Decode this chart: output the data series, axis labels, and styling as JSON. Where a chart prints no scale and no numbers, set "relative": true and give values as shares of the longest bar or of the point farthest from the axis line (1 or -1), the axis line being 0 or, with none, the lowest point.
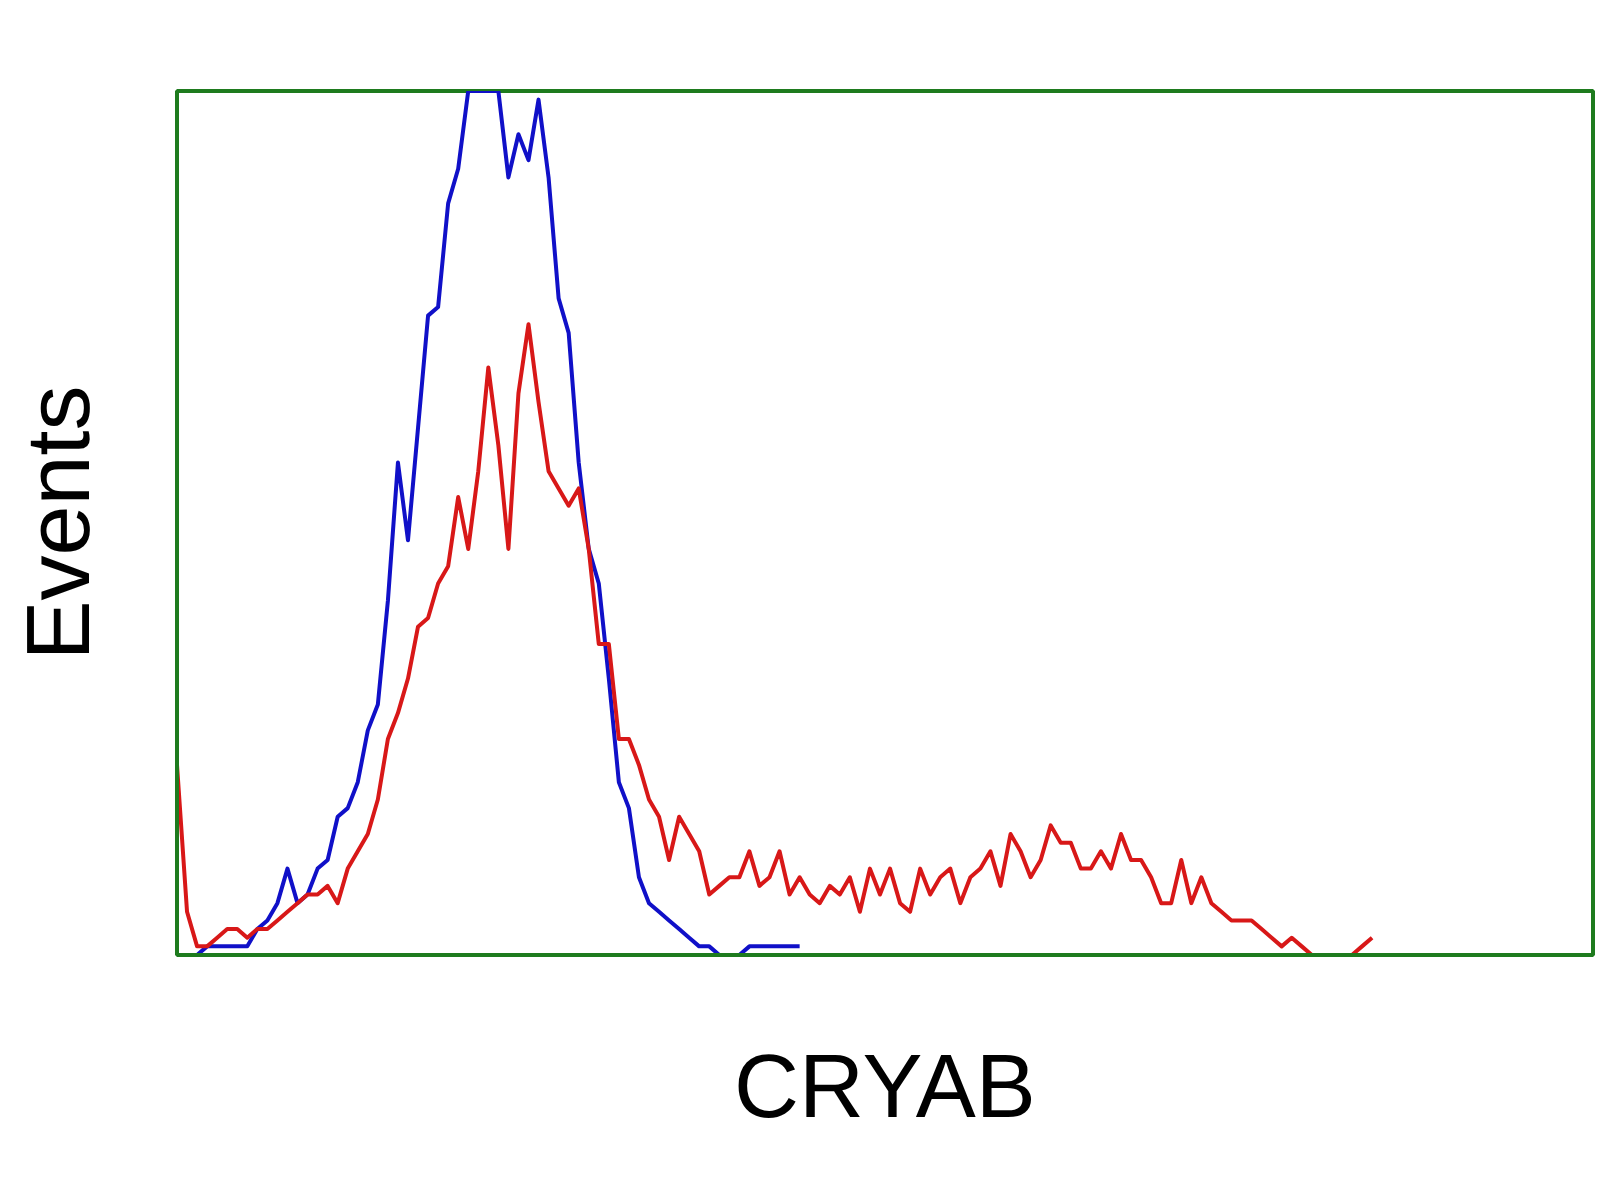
{
  "chart_data": {
    "type": "line",
    "relative": true,
    "xlabel": "CRYAB",
    "ylabel": "Events",
    "categories": [
      null,
      null,
      null,
      null,
      null,
      null,
      null,
      null,
      null,
      null,
      null,
      null,
      null,
      null,
      null,
      null,
      null,
      null,
      null,
      null,
      null,
      null,
      null,
      null,
      null,
      null,
      null,
      null,
      null,
      null,
      null,
      null,
      null,
      null,
      null,
      null,
      null,
      null,
      null,
      null,
      null,
      null,
      null,
      null,
      null,
      null,
      null,
      null,
      null,
      null,
      null,
      null,
      null,
      null,
      null,
      null,
      null,
      null,
      null,
      null,
      null,
      null,
      null,
      null,
      null,
      null,
      null,
      null,
      null,
      null,
      null,
      null,
      null,
      null,
      null,
      null,
      null,
      null,
      null,
      null,
      null,
      null,
      null,
      null,
      null,
      null,
      null,
      null,
      null,
      null,
      null,
      null,
      null,
      null,
      null,
      null,
      null,
      null,
      null,
      null,
      null,
      null,
      null,
      null,
      null,
      null,
      null,
      null,
      null,
      null,
      null,
      null,
      null,
      null,
      null,
      null,
      null,
      null,
      null,
      null,
      null,
      null,
      null,
      null,
      null,
      null,
      null,
      null,
      null,
      null,
      null,
      null,
      null,
      null,
      null,
      null,
      null,
      null,
      null,
      null,
      null,
      null
    ],
    "series": [
      {
        "color": "#1010c8",
        "values": [
          null,
          null,
          0,
          0.01,
          0.01,
          0.01,
          0.01,
          0.01,
          0.03,
          0.04,
          0.06,
          0.1,
          0.06,
          0.07,
          0.1,
          0.11,
          0.16,
          0.17,
          0.2,
          0.26,
          0.29,
          0.41,
          0.57,
          0.48,
          0.61,
          0.74,
          0.75,
          0.87,
          0.91,
          1,
          1,
          1,
          1,
          0.9,
          0.95,
          0.92,
          0.99,
          0.9,
          0.76,
          0.72,
          0.57,
          0.47,
          0.43,
          0.32,
          0.2,
          0.17,
          0.09,
          0.06,
          0.05,
          0.04,
          0.03,
          0.02,
          0.01,
          0.01,
          0,
          0,
          0,
          0.01,
          0.01,
          0.01,
          0.01,
          0.01,
          0.01,
          null,
          null,
          null,
          null,
          null,
          null,
          null,
          null,
          null,
          null,
          null,
          null,
          null,
          null,
          null,
          null,
          null,
          null,
          null,
          null,
          null,
          null,
          null,
          null,
          null,
          null,
          null,
          null,
          null,
          null,
          null,
          null,
          null,
          null,
          null,
          null,
          null,
          null,
          null,
          null,
          null,
          null,
          null,
          null,
          null,
          null,
          null,
          null,
          null,
          null,
          null,
          null,
          null,
          null,
          null,
          null,
          null,
          null,
          null,
          null,
          null,
          null,
          null,
          null,
          null,
          null,
          null,
          null,
          null,
          null,
          null,
          null,
          null,
          null,
          null,
          null,
          null,
          null,
          null
        ]
      },
      {
        "color": "#d81818",
        "values": [
          0.22,
          0.05,
          0.01,
          0.01,
          0.02,
          0.03,
          0.03,
          0.02,
          0.03,
          0.03,
          0.04,
          0.05,
          0.06,
          0.07,
          0.07,
          0.08,
          0.06,
          0.1,
          0.12,
          0.14,
          0.18,
          0.25,
          0.28,
          0.32,
          0.38,
          0.39,
          0.43,
          0.45,
          0.53,
          0.47,
          0.56,
          0.68,
          0.59,
          0.47,
          0.65,
          0.73,
          0.64,
          0.56,
          0.54,
          0.52,
          0.54,
          0.47,
          0.36,
          0.36,
          0.25,
          0.25,
          0.22,
          0.18,
          0.16,
          0.11,
          0.16,
          0.14,
          0.12,
          0.07,
          0.08,
          0.09,
          0.09,
          0.12,
          0.08,
          0.09,
          0.12,
          0.07,
          0.09,
          0.07,
          0.06,
          0.08,
          0.07,
          0.09,
          0.05,
          0.1,
          0.07,
          0.1,
          0.06,
          0.05,
          0.1,
          0.07,
          0.09,
          0.1,
          0.06,
          0.09,
          0.1,
          0.12,
          0.08,
          0.14,
          0.12,
          0.09,
          0.11,
          0.15,
          0.13,
          0.13,
          0.1,
          0.1,
          0.12,
          0.1,
          0.14,
          0.11,
          0.11,
          0.09,
          0.06,
          0.06,
          0.11,
          0.06,
          0.09,
          0.06,
          0.05,
          0.04,
          0.04,
          0.04,
          0.03,
          0.02,
          0.01,
          0.02,
          0.01,
          0,
          0,
          0,
          0,
          0,
          0.01,
          0.02,
          null,
          null,
          null,
          null,
          null,
          null,
          null,
          null,
          null,
          null,
          null,
          null,
          null,
          null,
          null,
          null,
          null,
          null,
          null,
          null,
          null,
          null
        ]
      }
    ]
  }
}
